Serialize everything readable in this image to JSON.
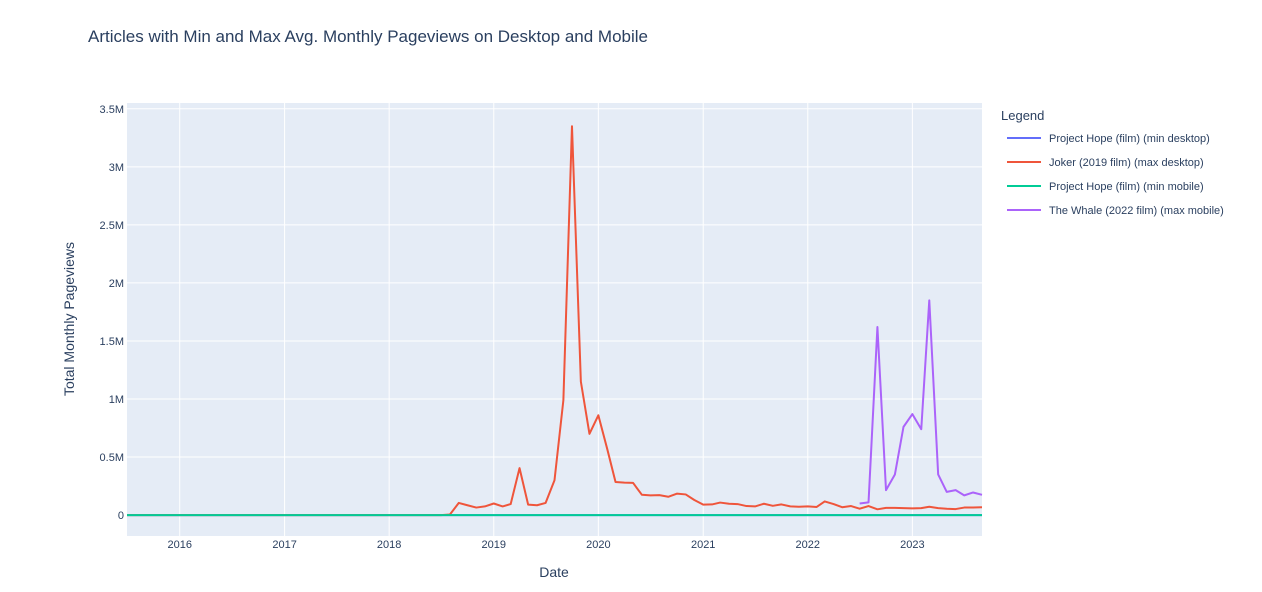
{
  "chart_data": {
    "type": "line",
    "title": "Articles with Min and Max Avg. Monthly Pageviews on Desktop and Mobile",
    "xlabel": "Date",
    "ylabel": "Total Monthly Pageviews",
    "x_ticks": [
      "2016",
      "2017",
      "2018",
      "2019",
      "2020",
      "2021",
      "2022",
      "2023"
    ],
    "y_ticks": [
      "0",
      "0.5M",
      "1M",
      "1.5M",
      "2M",
      "2.5M",
      "3M",
      "3.5M"
    ],
    "xlim": [
      "2015-07-01",
      "2023-09-01"
    ],
    "ylim": [
      -180000,
      3550000
    ],
    "grid": true,
    "legend_title": "Legend",
    "legend_position": "right",
    "series": [
      {
        "name": "Project Hope (film) (min desktop)",
        "color": "#636efa",
        "points": [
          [
            "2015-07-01",
            0
          ],
          [
            "2023-09-01",
            0
          ]
        ]
      },
      {
        "name": "Joker (2019 film) (max desktop)",
        "color": "#ef553b",
        "points": [
          [
            "2015-07-01",
            0
          ],
          [
            "2018-07-01",
            0
          ],
          [
            "2018-08-01",
            5000
          ],
          [
            "2018-09-01",
            105000
          ],
          [
            "2018-10-01",
            85000
          ],
          [
            "2018-11-01",
            65000
          ],
          [
            "2018-12-01",
            75000
          ],
          [
            "2019-01-01",
            100000
          ],
          [
            "2019-02-01",
            75000
          ],
          [
            "2019-03-01",
            95000
          ],
          [
            "2019-04-01",
            405000
          ],
          [
            "2019-05-01",
            90000
          ],
          [
            "2019-06-01",
            85000
          ],
          [
            "2019-07-01",
            105000
          ],
          [
            "2019-08-01",
            300000
          ],
          [
            "2019-09-01",
            990000
          ],
          [
            "2019-10-01",
            3350000
          ],
          [
            "2019-11-01",
            1150000
          ],
          [
            "2019-12-01",
            700000
          ],
          [
            "2020-01-01",
            860000
          ],
          [
            "2020-02-01",
            570000
          ],
          [
            "2020-03-01",
            285000
          ],
          [
            "2020-04-01",
            280000
          ],
          [
            "2020-05-01",
            278000
          ],
          [
            "2020-06-01",
            175000
          ],
          [
            "2020-07-01",
            170000
          ],
          [
            "2020-08-01",
            172000
          ],
          [
            "2020-09-01",
            158000
          ],
          [
            "2020-10-01",
            185000
          ],
          [
            "2020-11-01",
            178000
          ],
          [
            "2020-12-01",
            130000
          ],
          [
            "2021-01-01",
            90000
          ],
          [
            "2021-02-01",
            92000
          ],
          [
            "2021-03-01",
            108000
          ],
          [
            "2021-04-01",
            98000
          ],
          [
            "2021-05-01",
            95000
          ],
          [
            "2021-06-01",
            78000
          ],
          [
            "2021-07-01",
            75000
          ],
          [
            "2021-08-01",
            98000
          ],
          [
            "2021-09-01",
            80000
          ],
          [
            "2021-10-01",
            92000
          ],
          [
            "2021-11-01",
            75000
          ],
          [
            "2021-12-01",
            72000
          ],
          [
            "2022-01-01",
            75000
          ],
          [
            "2022-02-01",
            70000
          ],
          [
            "2022-03-01",
            118000
          ],
          [
            "2022-04-01",
            95000
          ],
          [
            "2022-05-01",
            68000
          ],
          [
            "2022-06-01",
            78000
          ],
          [
            "2022-07-01",
            55000
          ],
          [
            "2022-08-01",
            78000
          ],
          [
            "2022-09-01",
            50000
          ],
          [
            "2022-10-01",
            62000
          ],
          [
            "2022-11-01",
            62000
          ],
          [
            "2022-12-01",
            60000
          ],
          [
            "2023-01-01",
            58000
          ],
          [
            "2023-02-01",
            60000
          ],
          [
            "2023-03-01",
            72000
          ],
          [
            "2023-04-01",
            60000
          ],
          [
            "2023-05-01",
            55000
          ],
          [
            "2023-06-01",
            52000
          ],
          [
            "2023-07-01",
            65000
          ],
          [
            "2023-08-01",
            65000
          ],
          [
            "2023-09-01",
            68000
          ]
        ]
      },
      {
        "name": "Project Hope (film) (min mobile)",
        "color": "#00cc96",
        "points": [
          [
            "2015-07-01",
            0
          ],
          [
            "2023-09-01",
            0
          ]
        ]
      },
      {
        "name": "The Whale (2022 film) (max mobile)",
        "color": "#ab63fa",
        "points": [
          [
            "2022-07-01",
            100000
          ],
          [
            "2022-08-01",
            110000
          ],
          [
            "2022-09-01",
            1620000
          ],
          [
            "2022-10-01",
            215000
          ],
          [
            "2022-11-01",
            350000
          ],
          [
            "2022-12-01",
            760000
          ],
          [
            "2023-01-01",
            870000
          ],
          [
            "2023-02-01",
            740000
          ],
          [
            "2023-03-01",
            1850000
          ],
          [
            "2023-04-01",
            350000
          ],
          [
            "2023-05-01",
            200000
          ],
          [
            "2023-06-01",
            215000
          ],
          [
            "2023-07-01",
            170000
          ],
          [
            "2023-08-01",
            195000
          ],
          [
            "2023-09-01",
            175000
          ]
        ]
      }
    ]
  }
}
